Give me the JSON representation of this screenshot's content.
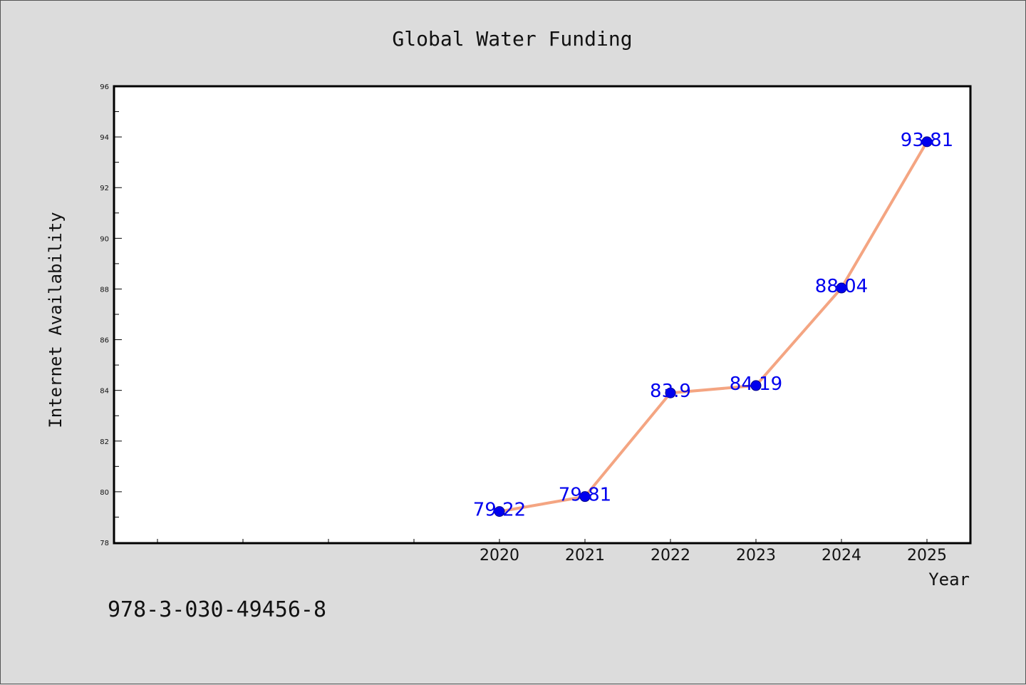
{
  "chart_data": {
    "type": "line",
    "title": "Global Water Funding",
    "xlabel": "Year",
    "ylabel": "Internet Availability",
    "categories": [
      "2020",
      "2021",
      "2022",
      "2023",
      "2024",
      "2025"
    ],
    "series": [
      {
        "values": [
          79.22,
          79.81,
          83.9,
          84.19,
          88.04,
          93.81
        ]
      }
    ],
    "data_labels": [
      "79.22",
      "79.81",
      "83.9",
      "84.19",
      "88.04",
      "93.81"
    ],
    "ylim": [
      78,
      96
    ],
    "yticks": [
      "78",
      "80",
      "82",
      "84",
      "86",
      "88",
      "90",
      "92",
      "94",
      "96"
    ],
    "x_slots": 10,
    "first_category_slot": 4,
    "grid": false,
    "colors": {
      "line": "#f4a582",
      "marker": "#0000ee",
      "label": "#0000ee",
      "background": "#dcdcdc",
      "plot": "#ffffff"
    }
  },
  "footer_text": "978-3-030-49456-8"
}
